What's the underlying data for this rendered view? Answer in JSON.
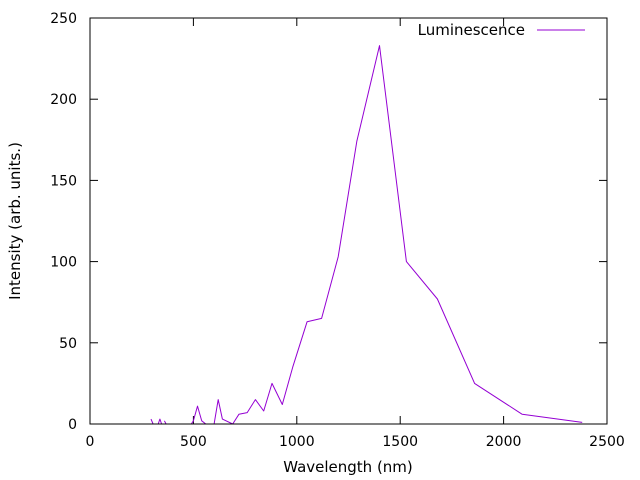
{
  "chart_data": {
    "type": "line",
    "xlabel": "Wavelength (nm)",
    "ylabel": "Intensity (arb. units.)",
    "xlim": [
      0,
      2500
    ],
    "ylim": [
      0,
      250
    ],
    "xticks": [
      0,
      500,
      1000,
      1500,
      2000,
      2500
    ],
    "yticks": [
      0,
      50,
      100,
      150,
      200,
      250
    ],
    "xtick_labels": [
      "0",
      "500",
      "1000",
      "1500",
      "2000",
      "2500"
    ],
    "ytick_labels": [
      "0",
      "50",
      "100",
      "150",
      "200",
      "250"
    ],
    "grid": false,
    "legend_position": "top-right",
    "series": [
      {
        "name": "Luminescence",
        "color": "#9400d3",
        "segments": [
          [
            [
              295,
              3
            ],
            [
              305,
              0
            ]
          ],
          [
            [
              330,
              0
            ],
            [
              338,
              3
            ],
            [
              346,
              0
            ]
          ],
          [
            [
              360,
              2
            ],
            [
              368,
              0
            ]
          ],
          [
            [
              490,
              0
            ],
            [
              500,
              2
            ],
            [
              520,
              11
            ],
            [
              540,
              2
            ],
            [
              560,
              0
            ],
            [
              600,
              0
            ],
            [
              620,
              15
            ],
            [
              640,
              3
            ],
            [
              690,
              0
            ],
            [
              720,
              6
            ],
            [
              760,
              7
            ],
            [
              800,
              15
            ],
            [
              840,
              8
            ],
            [
              880,
              25
            ],
            [
              930,
              12
            ],
            [
              980,
              35
            ],
            [
              1050,
              63
            ],
            [
              1120,
              65
            ],
            [
              1200,
              103
            ],
            [
              1290,
              174
            ],
            [
              1400,
              233
            ],
            [
              1530,
              100
            ],
            [
              1680,
              77
            ],
            [
              1860,
              25
            ],
            [
              2090,
              6
            ],
            [
              2380,
              1
            ]
          ]
        ]
      }
    ]
  }
}
